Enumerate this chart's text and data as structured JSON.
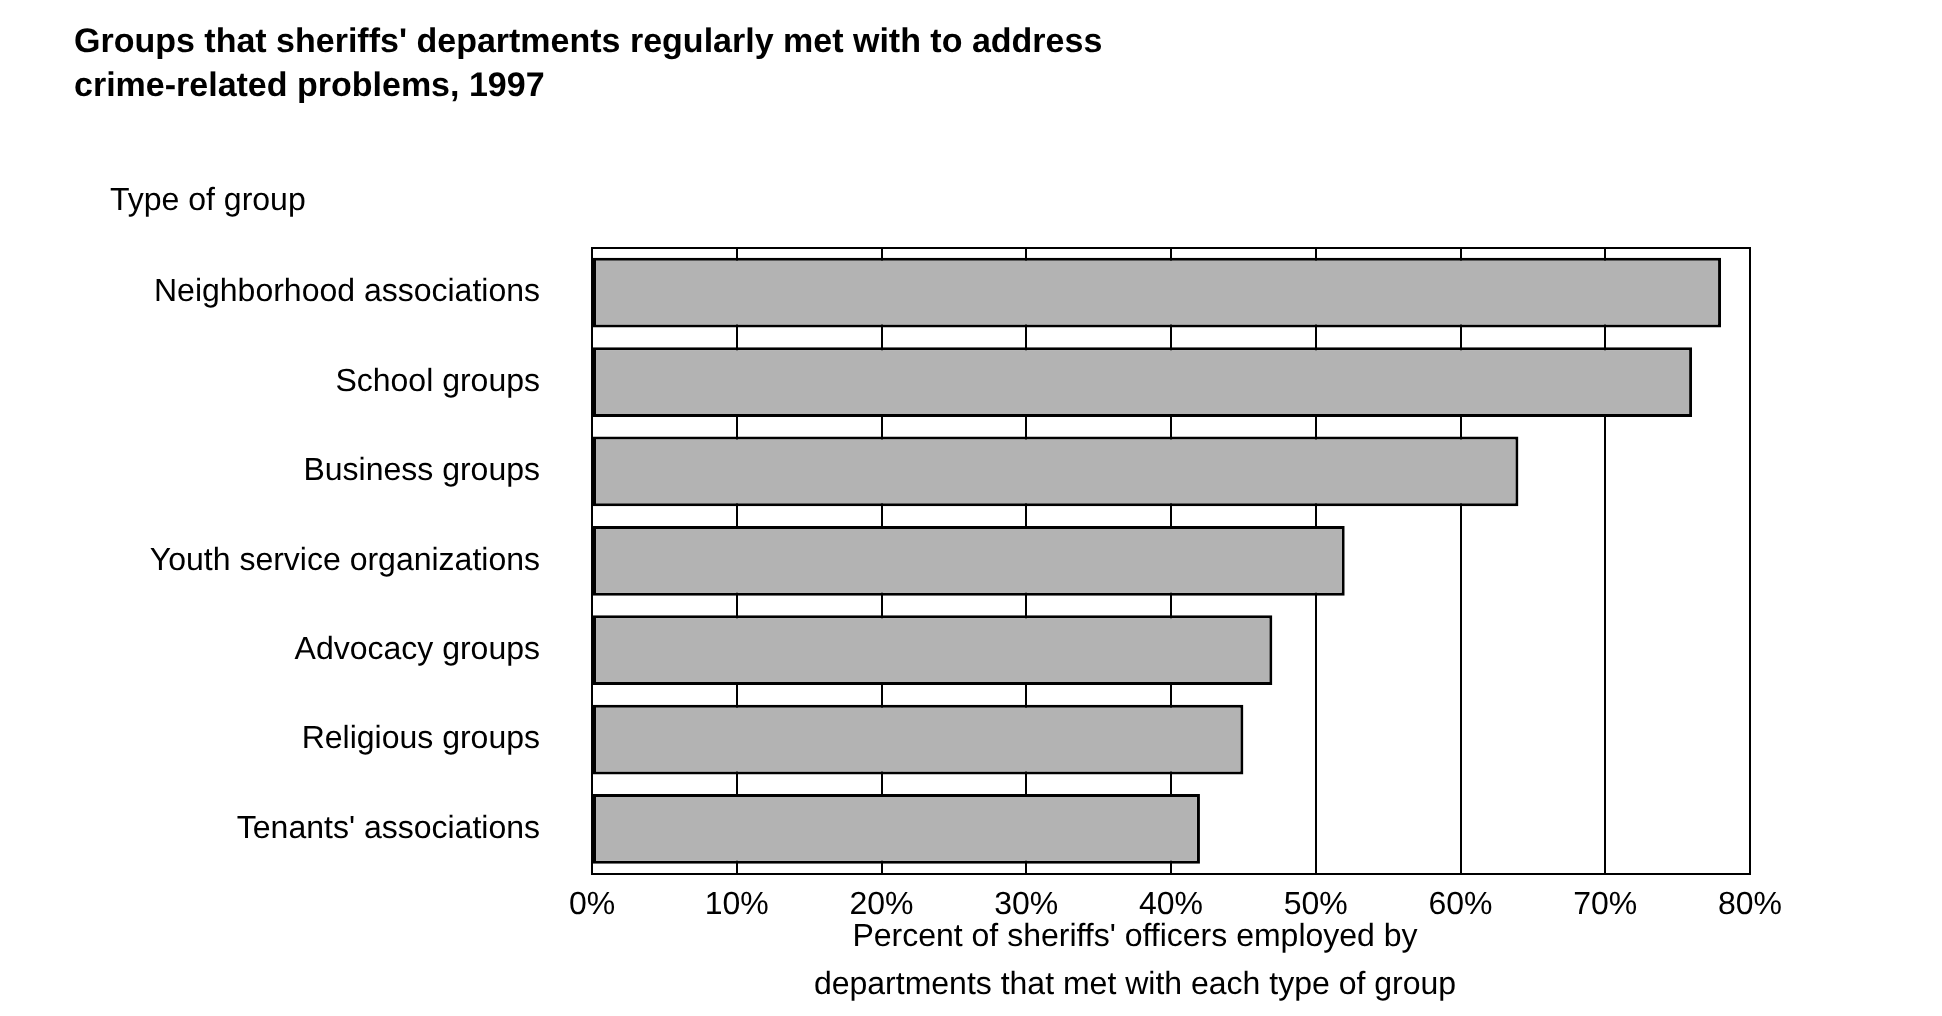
{
  "chart_data": {
    "type": "bar",
    "orientation": "horizontal",
    "title": "Groups that sheriffs' departments regularly met with to address crime-related problems, 1997",
    "ylabel": "Type of group",
    "xlabel": "Percent of sheriffs' officers employed by departments that met with each type of group",
    "categories": [
      "Neighborhood associations",
      "School groups",
      "Business groups",
      "Youth service organizations",
      "Advocacy groups",
      "Religious groups",
      "Tenants' associations"
    ],
    "values": [
      78,
      76,
      64,
      52,
      47,
      45,
      42
    ],
    "color": "#b3b3b3",
    "xlim": [
      0,
      80
    ],
    "xticks": [
      {
        "value": 0,
        "label": "0%"
      },
      {
        "value": 10,
        "label": "10%"
      },
      {
        "value": 20,
        "label": "20%"
      },
      {
        "value": 30,
        "label": "30%"
      },
      {
        "value": 40,
        "label": "40%"
      },
      {
        "value": 50,
        "label": "50%"
      },
      {
        "value": 60,
        "label": "60%"
      },
      {
        "value": 70,
        "label": "70%"
      },
      {
        "value": 80,
        "label": "80%"
      }
    ],
    "grid": "x"
  }
}
